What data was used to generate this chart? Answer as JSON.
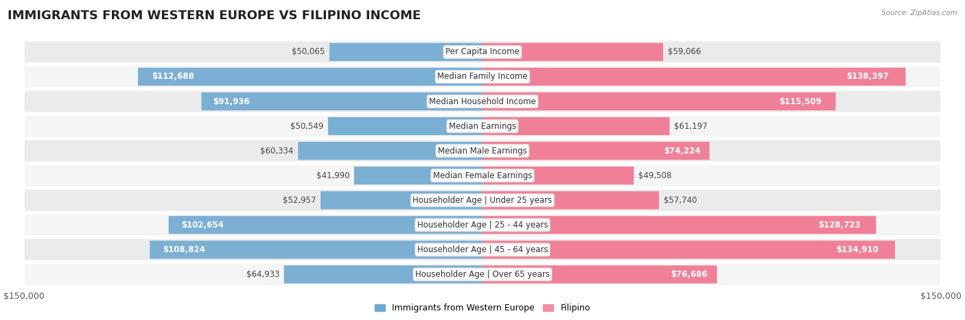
{
  "title": "IMMIGRANTS FROM WESTERN EUROPE VS FILIPINO INCOME",
  "source": "Source: ZipAtlas.com",
  "categories": [
    "Per Capita Income",
    "Median Family Income",
    "Median Household Income",
    "Median Earnings",
    "Median Male Earnings",
    "Median Female Earnings",
    "Householder Age | Under 25 years",
    "Householder Age | 25 - 44 years",
    "Householder Age | 45 - 64 years",
    "Householder Age | Over 65 years"
  ],
  "western_europe_values": [
    50065,
    112688,
    91936,
    50549,
    60334,
    41990,
    52957,
    102654,
    108824,
    64933
  ],
  "filipino_values": [
    59066,
    138397,
    115509,
    61197,
    74224,
    49508,
    57740,
    128723,
    134910,
    76686
  ],
  "western_europe_labels": [
    "$50,065",
    "$112,688",
    "$91,936",
    "$50,549",
    "$60,334",
    "$41,990",
    "$52,957",
    "$102,654",
    "$108,824",
    "$64,933"
  ],
  "filipino_labels": [
    "$59,066",
    "$138,397",
    "$115,509",
    "$61,197",
    "$74,224",
    "$49,508",
    "$57,740",
    "$128,723",
    "$134,910",
    "$76,686"
  ],
  "max_value": 150000,
  "blue_light": "#A8C4E0",
  "blue_bar": "#7BAFD4",
  "pink_light": "#F0B8C8",
  "pink_bar": "#F08098",
  "blue_legend": "#6FA8D0",
  "pink_legend": "#F090A8",
  "label_blue": "Immigrants from Western Europe",
  "label_pink": "Filipino",
  "row_color_even": "#EBEBEB",
  "row_color_odd": "#F5F5F5",
  "bar_height": 0.72,
  "title_fontsize": 13,
  "label_fontsize": 8.5,
  "tick_fontsize": 9,
  "source_fontsize": 7.5,
  "axis_label_left": "$150,000",
  "axis_label_right": "$150,000",
  "inside_label_threshold": 65000,
  "white_text_threshold": 75000
}
